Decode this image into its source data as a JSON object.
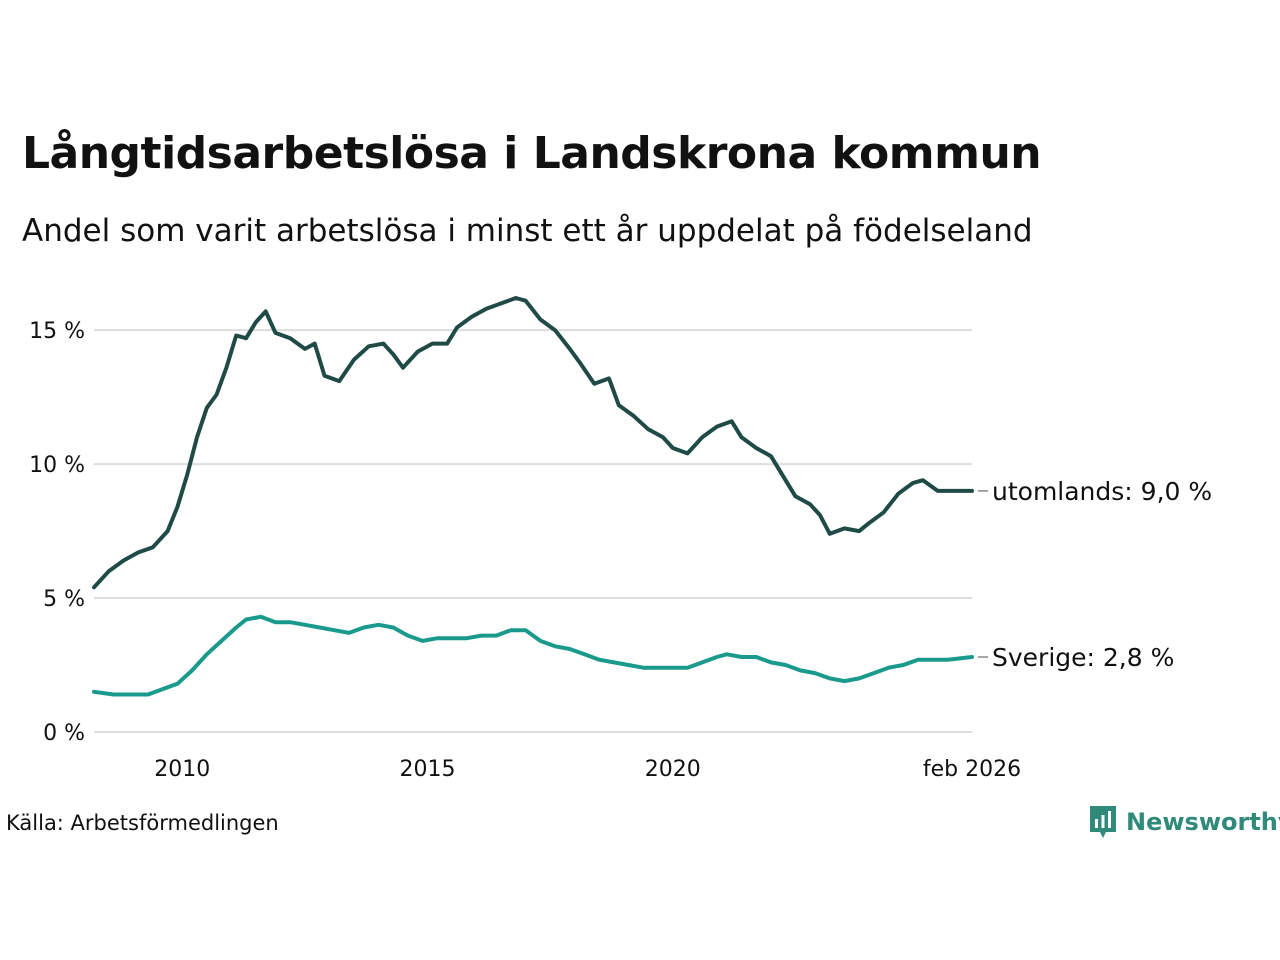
{
  "title": "Långtidsarbetslösa i Landskrona kommun",
  "subtitle": "Andel som varit arbetslösa i minst ett år uppdelat på födelseland",
  "source": "Källa: Arbetsförmedlingen",
  "brand": "Newsworthy",
  "colors": {
    "utomlands": "#1f4a45",
    "sverige": "#1a9a8c",
    "grid": "#dddddd",
    "brand": "#2f8a7a"
  },
  "chart_data": {
    "type": "line",
    "title": "Långtidsarbetslösa i Landskrona kommun",
    "subtitle": "Andel som varit arbetslösa i minst ett år uppdelat på födelseland",
    "xlabel": "",
    "ylabel": "",
    "x_range": [
      2008.2,
      2026.1
    ],
    "ylim": [
      0,
      16.5
    ],
    "y_ticks": [
      0,
      5,
      10,
      15
    ],
    "y_tick_labels": [
      "0 %",
      "5 %",
      "10 %",
      "15 %"
    ],
    "x_ticks": [
      2010,
      2015,
      2020,
      2026.1
    ],
    "x_tick_labels": [
      "2010",
      "2015",
      "2020",
      "feb 2026"
    ],
    "grid": true,
    "series": [
      {
        "name": "utomlands",
        "label": "utomlands: 9,0 %",
        "color": "#1f4a45",
        "points": [
          [
            2008.2,
            5.4
          ],
          [
            2008.5,
            6.0
          ],
          [
            2008.8,
            6.4
          ],
          [
            2009.1,
            6.7
          ],
          [
            2009.4,
            6.9
          ],
          [
            2009.7,
            7.5
          ],
          [
            2009.9,
            8.4
          ],
          [
            2010.1,
            9.6
          ],
          [
            2010.3,
            11.0
          ],
          [
            2010.5,
            12.1
          ],
          [
            2010.7,
            12.6
          ],
          [
            2010.9,
            13.6
          ],
          [
            2011.1,
            14.8
          ],
          [
            2011.3,
            14.7
          ],
          [
            2011.5,
            15.3
          ],
          [
            2011.7,
            15.7
          ],
          [
            2011.9,
            14.9
          ],
          [
            2012.2,
            14.7
          ],
          [
            2012.5,
            14.3
          ],
          [
            2012.7,
            14.5
          ],
          [
            2012.9,
            13.3
          ],
          [
            2013.2,
            13.1
          ],
          [
            2013.5,
            13.9
          ],
          [
            2013.8,
            14.4
          ],
          [
            2014.1,
            14.5
          ],
          [
            2014.3,
            14.1
          ],
          [
            2014.5,
            13.6
          ],
          [
            2014.8,
            14.2
          ],
          [
            2015.1,
            14.5
          ],
          [
            2015.4,
            14.5
          ],
          [
            2015.6,
            15.1
          ],
          [
            2015.9,
            15.5
          ],
          [
            2016.2,
            15.8
          ],
          [
            2016.5,
            16.0
          ],
          [
            2016.8,
            16.2
          ],
          [
            2017.0,
            16.1
          ],
          [
            2017.3,
            15.4
          ],
          [
            2017.6,
            15.0
          ],
          [
            2017.9,
            14.3
          ],
          [
            2018.1,
            13.8
          ],
          [
            2018.4,
            13.0
          ],
          [
            2018.7,
            13.2
          ],
          [
            2018.9,
            12.2
          ],
          [
            2019.2,
            11.8
          ],
          [
            2019.5,
            11.3
          ],
          [
            2019.8,
            11.0
          ],
          [
            2020.0,
            10.6
          ],
          [
            2020.3,
            10.4
          ],
          [
            2020.6,
            11.0
          ],
          [
            2020.9,
            11.4
          ],
          [
            2021.2,
            11.6
          ],
          [
            2021.4,
            11.0
          ],
          [
            2021.7,
            10.6
          ],
          [
            2022.0,
            10.3
          ],
          [
            2022.2,
            9.7
          ],
          [
            2022.5,
            8.8
          ],
          [
            2022.8,
            8.5
          ],
          [
            2023.0,
            8.1
          ],
          [
            2023.2,
            7.4
          ],
          [
            2023.5,
            7.6
          ],
          [
            2023.8,
            7.5
          ],
          [
            2024.0,
            7.8
          ],
          [
            2024.3,
            8.2
          ],
          [
            2024.6,
            8.9
          ],
          [
            2024.9,
            9.3
          ],
          [
            2025.1,
            9.4
          ],
          [
            2025.4,
            9.0
          ],
          [
            2025.7,
            9.0
          ],
          [
            2026.1,
            9.0
          ]
        ]
      },
      {
        "name": "Sverige",
        "label": "Sverige: 2,8 %",
        "color": "#1a9a8c",
        "points": [
          [
            2008.2,
            1.5
          ],
          [
            2008.6,
            1.4
          ],
          [
            2009.0,
            1.4
          ],
          [
            2009.3,
            1.4
          ],
          [
            2009.6,
            1.6
          ],
          [
            2009.9,
            1.8
          ],
          [
            2010.2,
            2.3
          ],
          [
            2010.5,
            2.9
          ],
          [
            2010.8,
            3.4
          ],
          [
            2011.1,
            3.9
          ],
          [
            2011.3,
            4.2
          ],
          [
            2011.6,
            4.3
          ],
          [
            2011.9,
            4.1
          ],
          [
            2012.2,
            4.1
          ],
          [
            2012.5,
            4.0
          ],
          [
            2012.8,
            3.9
          ],
          [
            2013.1,
            3.8
          ],
          [
            2013.4,
            3.7
          ],
          [
            2013.7,
            3.9
          ],
          [
            2014.0,
            4.0
          ],
          [
            2014.3,
            3.9
          ],
          [
            2014.6,
            3.6
          ],
          [
            2014.9,
            3.4
          ],
          [
            2015.2,
            3.5
          ],
          [
            2015.5,
            3.5
          ],
          [
            2015.8,
            3.5
          ],
          [
            2016.1,
            3.6
          ],
          [
            2016.4,
            3.6
          ],
          [
            2016.7,
            3.8
          ],
          [
            2017.0,
            3.8
          ],
          [
            2017.3,
            3.4
          ],
          [
            2017.6,
            3.2
          ],
          [
            2017.9,
            3.1
          ],
          [
            2018.2,
            2.9
          ],
          [
            2018.5,
            2.7
          ],
          [
            2018.8,
            2.6
          ],
          [
            2019.1,
            2.5
          ],
          [
            2019.4,
            2.4
          ],
          [
            2019.7,
            2.4
          ],
          [
            2020.0,
            2.4
          ],
          [
            2020.3,
            2.4
          ],
          [
            2020.6,
            2.6
          ],
          [
            2020.9,
            2.8
          ],
          [
            2021.1,
            2.9
          ],
          [
            2021.4,
            2.8
          ],
          [
            2021.7,
            2.8
          ],
          [
            2022.0,
            2.6
          ],
          [
            2022.3,
            2.5
          ],
          [
            2022.6,
            2.3
          ],
          [
            2022.9,
            2.2
          ],
          [
            2023.2,
            2.0
          ],
          [
            2023.5,
            1.9
          ],
          [
            2023.8,
            2.0
          ],
          [
            2024.1,
            2.2
          ],
          [
            2024.4,
            2.4
          ],
          [
            2024.7,
            2.5
          ],
          [
            2025.0,
            2.7
          ],
          [
            2025.3,
            2.7
          ],
          [
            2025.6,
            2.7
          ],
          [
            2026.1,
            2.8
          ]
        ]
      }
    ]
  }
}
